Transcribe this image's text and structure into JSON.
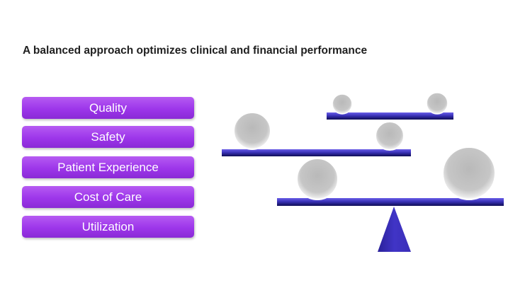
{
  "slide": {
    "title": "A balanced approach optimizes clinical and financial performance",
    "categories": [
      "Quality",
      "Safety",
      "Patient Experience",
      "Cost of Care",
      "Utilization"
    ]
  },
  "colors": {
    "pill": "#9d36ea",
    "beam_light": "#5a4fd6",
    "beam_dark": "#14126b",
    "ball": "#cfcfcf"
  },
  "icons": [
    "balance-scale-icon",
    "weight-ball-icon",
    "fulcrum-triangle-icon"
  ]
}
